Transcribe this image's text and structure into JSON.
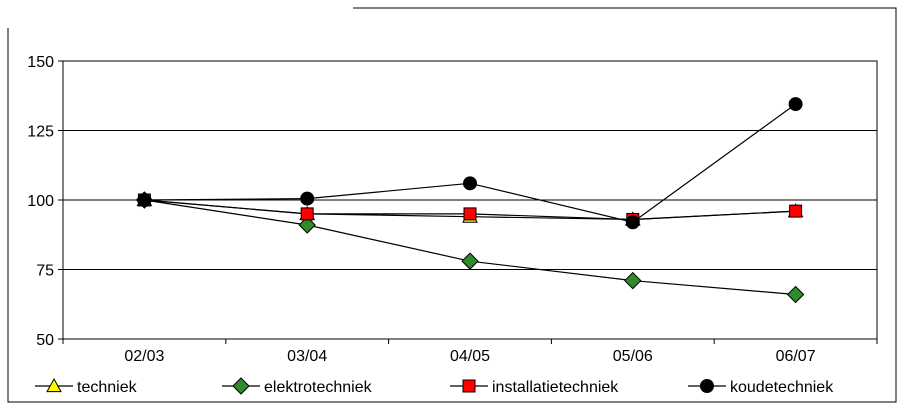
{
  "chart_data": {
    "type": "line",
    "title": "",
    "xlabel": "",
    "ylabel": "",
    "categories": [
      "02/03",
      "03/04",
      "04/05",
      "05/06",
      "06/07"
    ],
    "ylim": [
      50,
      150
    ],
    "yticks": [
      50,
      75,
      100,
      125,
      150
    ],
    "grid": "horizontal",
    "legend_position": "bottom",
    "series": [
      {
        "name": "techniek",
        "values": [
          100,
          95,
          94,
          93,
          96
        ],
        "marker": "triangle",
        "color": "#ffff00"
      },
      {
        "name": "elektrotechniek",
        "values": [
          100,
          91,
          78,
          71,
          66
        ],
        "marker": "diamond",
        "color": "#2e8b2e"
      },
      {
        "name": "installatietechniek",
        "values": [
          100,
          95,
          95,
          93,
          96
        ],
        "marker": "square",
        "color": "#ff0000"
      },
      {
        "name": "koudetechniek",
        "values": [
          100,
          100.5,
          106,
          92,
          134.5
        ],
        "marker": "circle",
        "color": "#000000"
      }
    ]
  }
}
